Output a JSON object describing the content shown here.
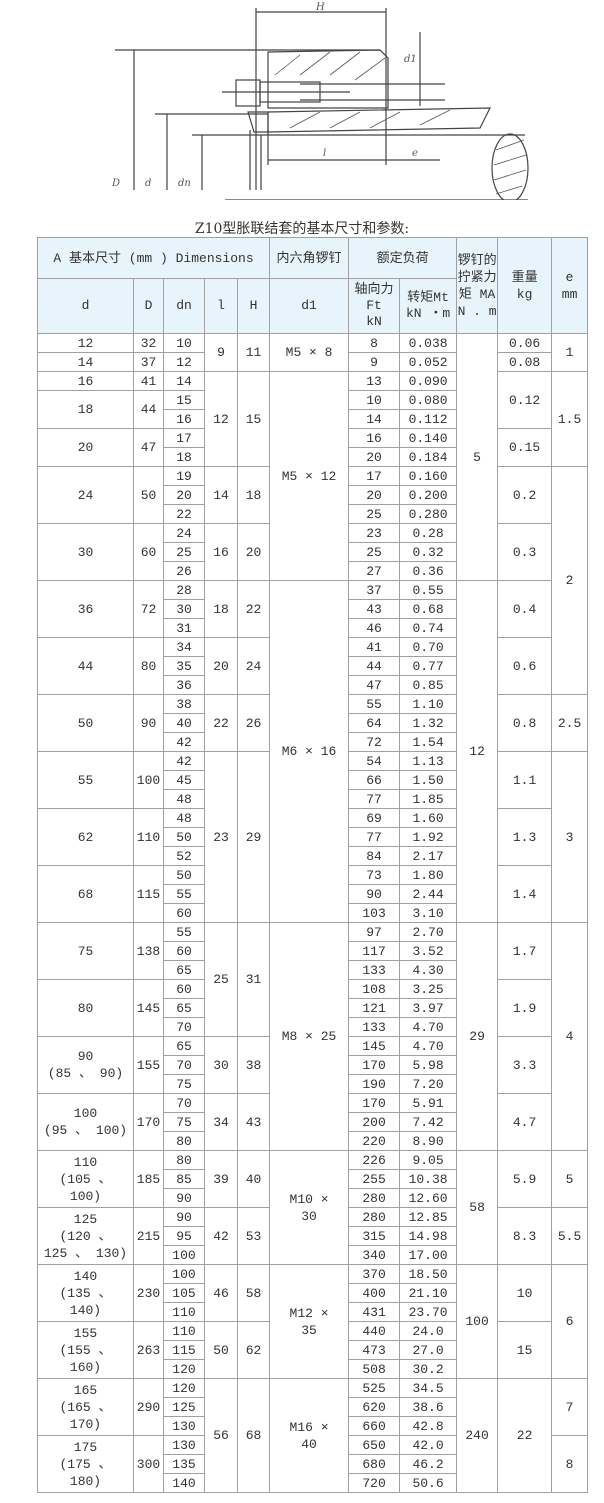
{
  "drawing": {
    "labels": {
      "H": "H",
      "d1": "d1",
      "l": "l",
      "e": "e",
      "D": "D",
      "d": "d",
      "dn": "dn"
    }
  },
  "title": "Z10型胀联结套的基本尺寸和参数:",
  "table": {
    "header_row1": {
      "dimensions": "A 基本尺寸 (mm ) Dimensions",
      "screw": "内六角锣钉",
      "rated_load": "额定负荷",
      "tightening_torque": "锣钉的拧紧力矩 MA N . m",
      "weight": "重量\nkg",
      "e": "e\nmm"
    },
    "header_row2": {
      "d": "d",
      "D": "D",
      "dn": "dn",
      "l": "l",
      "H": "H",
      "d1": "d1",
      "Ft": "轴向力\nFt\nkN",
      "Mt": "转矩Mt\nkN ・m"
    },
    "columns": {
      "d": [
        {
          "value": "12",
          "rows": 1
        },
        {
          "value": "14",
          "rows": 1
        },
        {
          "value": "16",
          "rows": 1
        },
        {
          "value": "18",
          "rows": 2
        },
        {
          "value": "20",
          "rows": 2
        },
        {
          "value": "24",
          "rows": 3
        },
        {
          "value": "30",
          "rows": 3
        },
        {
          "value": "36",
          "rows": 3
        },
        {
          "value": "44",
          "rows": 3
        },
        {
          "value": "50",
          "rows": 3
        },
        {
          "value": "55",
          "rows": 3
        },
        {
          "value": "62",
          "rows": 3
        },
        {
          "value": "68",
          "rows": 3
        },
        {
          "value": "75",
          "rows": 3
        },
        {
          "value": "80",
          "rows": 3
        },
        {
          "value": "90\n(85 、 90)",
          "rows": 3
        },
        {
          "value": "100\n(95 、 100)",
          "rows": 3
        },
        {
          "value": "110\n(105 、\n100)",
          "rows": 3
        },
        {
          "value": "125\n(120 、\n125 、 130)",
          "rows": 3
        },
        {
          "value": "140\n(135 、\n140)",
          "rows": 3
        },
        {
          "value": "155\n(155 、\n160)",
          "rows": 3
        },
        {
          "value": "165\n(165 、\n170)",
          "rows": 3
        },
        {
          "value": "175\n(175 、\n180)",
          "rows": 3
        }
      ],
      "D": [
        {
          "value": "32",
          "rows": 1
        },
        {
          "value": "37",
          "rows": 1
        },
        {
          "value": "41",
          "rows": 1
        },
        {
          "value": "44",
          "rows": 2
        },
        {
          "value": "47",
          "rows": 2
        },
        {
          "value": "50",
          "rows": 3
        },
        {
          "value": "60",
          "rows": 3
        },
        {
          "value": "72",
          "rows": 3
        },
        {
          "value": "80",
          "rows": 3
        },
        {
          "value": "90",
          "rows": 3
        },
        {
          "value": "100",
          "rows": 3
        },
        {
          "value": "110",
          "rows": 3
        },
        {
          "value": "115",
          "rows": 3
        },
        {
          "value": "138",
          "rows": 3
        },
        {
          "value": "145",
          "rows": 3
        },
        {
          "value": "155",
          "rows": 3
        },
        {
          "value": "170",
          "rows": 3
        },
        {
          "value": "185",
          "rows": 3
        },
        {
          "value": "215",
          "rows": 3
        },
        {
          "value": "230",
          "rows": 3
        },
        {
          "value": "263",
          "rows": 3
        },
        {
          "value": "290",
          "rows": 3
        },
        {
          "value": "300",
          "rows": 3
        }
      ],
      "dn": [
        "10",
        "12",
        "14",
        "15",
        "16",
        "17",
        "18",
        "19",
        "20",
        "22",
        "24",
        "25",
        "26",
        "28",
        "30",
        "31",
        "34",
        "35",
        "36",
        "38",
        "40",
        "42",
        "42",
        "45",
        "48",
        "48",
        "50",
        "52",
        "50",
        "55",
        "60",
        "55",
        "60",
        "65",
        "60",
        "65",
        "70",
        "65",
        "70",
        "75",
        "70",
        "75",
        "80",
        "80",
        "85",
        "90",
        "90",
        "95",
        "100",
        "100",
        "105",
        "110",
        "110",
        "115",
        "120",
        "120",
        "125",
        "130",
        "130",
        "135",
        "140"
      ],
      "l": [
        {
          "value": "9",
          "rows": 2
        },
        {
          "value": "12",
          "rows": 5
        },
        {
          "value": "14",
          "rows": 3
        },
        {
          "value": "16",
          "rows": 3
        },
        {
          "value": "18",
          "rows": 3
        },
        {
          "value": "20",
          "rows": 3
        },
        {
          "value": "22",
          "rows": 3
        },
        {
          "value": "23",
          "rows": 9
        },
        {
          "value": "25",
          "rows": 6
        },
        {
          "value": "30",
          "rows": 3
        },
        {
          "value": "34",
          "rows": 3
        },
        {
          "value": "39",
          "rows": 3
        },
        {
          "value": "42",
          "rows": 3
        },
        {
          "value": "46",
          "rows": 3
        },
        {
          "value": "50",
          "rows": 3
        },
        {
          "value": "56",
          "rows": 6
        }
      ],
      "H": [
        {
          "value": "11",
          "rows": 2
        },
        {
          "value": "15",
          "rows": 5
        },
        {
          "value": "18",
          "rows": 3
        },
        {
          "value": "20",
          "rows": 3
        },
        {
          "value": "22",
          "rows": 3
        },
        {
          "value": "24",
          "rows": 3
        },
        {
          "value": "26",
          "rows": 3
        },
        {
          "value": "29",
          "rows": 9
        },
        {
          "value": "31",
          "rows": 6
        },
        {
          "value": "38",
          "rows": 3
        },
        {
          "value": "43",
          "rows": 3
        },
        {
          "value": "40",
          "rows": 3
        },
        {
          "value": "53",
          "rows": 3
        },
        {
          "value": "58",
          "rows": 3
        },
        {
          "value": "62",
          "rows": 3
        },
        {
          "value": "68",
          "rows": 6
        }
      ],
      "d1": [
        {
          "value": "M5 × 8",
          "rows": 2
        },
        {
          "value": "M5 × 12",
          "rows": 11
        },
        {
          "value": "M6 × 16",
          "rows": 18
        },
        {
          "value": "M8 × 25",
          "rows": 12
        },
        {
          "value": "M10 ×\n30",
          "rows": 6
        },
        {
          "value": "M12 ×\n35",
          "rows": 6
        },
        {
          "value": "M16 ×\n40",
          "rows": 6
        }
      ],
      "Ft": [
        "8",
        "9",
        "13",
        "10",
        "14",
        "16",
        "20",
        "17",
        "20",
        "25",
        "23",
        "25",
        "27",
        "37",
        "43",
        "46",
        "41",
        "44",
        "47",
        "55",
        "64",
        "72",
        "54",
        "66",
        "77",
        "69",
        "77",
        "84",
        "73",
        "90",
        "103",
        "97",
        "117",
        "133",
        "108",
        "121",
        "133",
        "145",
        "170",
        "190",
        "170",
        "200",
        "220",
        "226",
        "255",
        "280",
        "280",
        "315",
        "340",
        "370",
        "400",
        "431",
        "440",
        "473",
        "508",
        "525",
        "620",
        "660",
        "650",
        "680",
        "720"
      ],
      "Mt": [
        "0.038",
        "0.052",
        "0.090",
        "0.080",
        "0.112",
        "0.140",
        "0.184",
        "0.160",
        "0.200",
        "0.280",
        "0.28",
        "0.32",
        "0.36",
        "0.55",
        "0.68",
        "0.74",
        "0.70",
        "0.77",
        "0.85",
        "1.10",
        "1.32",
        "1.54",
        "1.13",
        "1.50",
        "1.85",
        "1.60",
        "1.92",
        "2.17",
        "1.80",
        "2.44",
        "3.10",
        "2.70",
        "3.52",
        "4.30",
        "3.25",
        "3.97",
        "4.70",
        "4.70",
        "5.98",
        "7.20",
        "5.91",
        "7.42",
        "8.90",
        "9.05",
        "10.38",
        "12.60",
        "12.85",
        "14.98",
        "17.00",
        "18.50",
        "21.10",
        "23.70",
        "24.0",
        "27.0",
        "30.2",
        "34.5",
        "38.6",
        "42.8",
        "42.0",
        "46.2",
        "50.6"
      ],
      "MA": [
        {
          "value": "5",
          "rows": 13
        },
        {
          "value": "12",
          "rows": 18
        },
        {
          "value": "29",
          "rows": 12
        },
        {
          "value": "58",
          "rows": 6
        },
        {
          "value": "100",
          "rows": 6
        },
        {
          "value": "240",
          "rows": 6
        }
      ],
      "kg": [
        {
          "value": "0.06",
          "rows": 1
        },
        {
          "value": "0.08",
          "rows": 1
        },
        {
          "value": "0.12",
          "rows": 3
        },
        {
          "value": "0.15",
          "rows": 2
        },
        {
          "value": "0.2",
          "rows": 3
        },
        {
          "value": "0.3",
          "rows": 3
        },
        {
          "value": "0.4",
          "rows": 3
        },
        {
          "value": "0.6",
          "rows": 3
        },
        {
          "value": "0.8",
          "rows": 3
        },
        {
          "value": "1.1",
          "rows": 3
        },
        {
          "value": "1.3",
          "rows": 3
        },
        {
          "value": "1.4",
          "rows": 3
        },
        {
          "value": "1.7",
          "rows": 3
        },
        {
          "value": "1.9",
          "rows": 3
        },
        {
          "value": "3.3",
          "rows": 3
        },
        {
          "value": "4.7",
          "rows": 3
        },
        {
          "value": "5.9",
          "rows": 3
        },
        {
          "value": "8.3",
          "rows": 3
        },
        {
          "value": "10",
          "rows": 3
        },
        {
          "value": "15",
          "rows": 3
        },
        {
          "value": "22",
          "rows": 6
        }
      ],
      "e": [
        {
          "value": "1",
          "rows": 2
        },
        {
          "value": "1.5",
          "rows": 5
        },
        {
          "value": "2",
          "rows": 12
        },
        {
          "value": "2.5",
          "rows": 3
        },
        {
          "value": "3",
          "rows": 9
        },
        {
          "value": "4",
          "rows": 12
        },
        {
          "value": "5",
          "rows": 3
        },
        {
          "value": "5.5",
          "rows": 3
        },
        {
          "value": "6",
          "rows": 6
        },
        {
          "value": "7",
          "rows": 3
        },
        {
          "value": "8",
          "rows": 3
        }
      ]
    }
  }
}
